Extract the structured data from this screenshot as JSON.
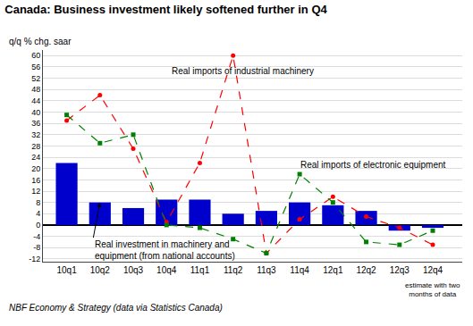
{
  "chart_data": {
    "type": "bar",
    "title": "Canada: Business investment likely softened further in Q4",
    "ylabel": "q/q % chg. saar",
    "categories": [
      "10q1",
      "10q2",
      "10q3",
      "10q4",
      "11q1",
      "11q2",
      "11q3",
      "11q4",
      "12q1",
      "12q2",
      "12q3",
      "12q4"
    ],
    "series": [
      {
        "type": "bar",
        "color": "#0000CC",
        "values": [
          22,
          8,
          6,
          9,
          9,
          4,
          5,
          8,
          7,
          5,
          -2,
          -1
        ]
      },
      {
        "type": "line",
        "color": "#FF0000",
        "line_style": "dashed",
        "marker": "circle",
        "values": [
          37,
          46,
          27,
          1,
          22,
          60,
          -10,
          2,
          10,
          3,
          -1,
          -7
        ]
      },
      {
        "type": "line",
        "color": "#008000",
        "line_style": "dashed",
        "marker": "square",
        "values": [
          39,
          29,
          32,
          0,
          -1,
          -5,
          -10,
          18,
          8,
          -6,
          -7,
          -2
        ]
      }
    ],
    "ylim": [
      -13,
      62
    ],
    "yticks": [
      -12,
      -8,
      -4,
      0,
      4,
      8,
      12,
      16,
      20,
      24,
      28,
      32,
      36,
      40,
      44,
      48,
      52,
      56,
      60
    ],
    "grid": true,
    "annotations": [
      "Real imports of industrial machinery",
      "Real imports of electronic equipment",
      "Real investment in machinery and\nequipment (from national accounts)",
      "estimate with two\nmonths of data",
      "NBF Economy & Strategy (data via Statistics Canada)"
    ]
  }
}
